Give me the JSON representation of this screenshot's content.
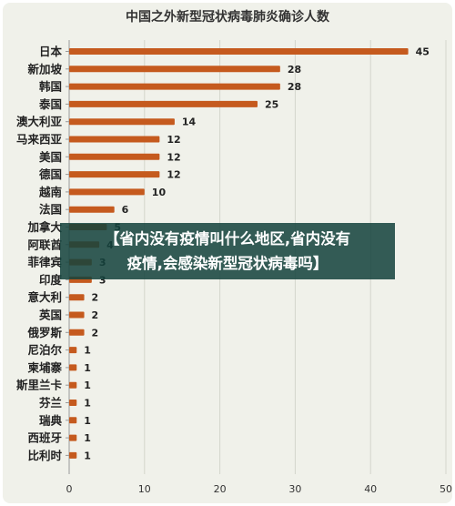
{
  "chart_data": {
    "type": "bar",
    "orientation": "horizontal",
    "title": "中国之外新型冠状病毒肺炎确诊人数",
    "categories": [
      "日本",
      "新加坡",
      "韩国",
      "泰国",
      "澳大利亚",
      "马来西亚",
      "美国",
      "德国",
      "越南",
      "法国",
      "加拿大",
      "阿联酋",
      "菲律宾",
      "印度",
      "意大利",
      "英国",
      "俄罗斯",
      "尼泊尔",
      "柬埔寨",
      "斯里兰卡",
      "芬兰",
      "瑞典",
      "西班牙",
      "比利时"
    ],
    "values": [
      45,
      28,
      28,
      25,
      14,
      12,
      12,
      12,
      10,
      6,
      5,
      4,
      3,
      3,
      2,
      2,
      2,
      1,
      1,
      1,
      1,
      1,
      1,
      1
    ],
    "xlim": [
      0,
      50
    ],
    "xticks": [
      "0",
      "10",
      "20",
      "30",
      "40",
      "50"
    ],
    "grid": true,
    "bar_color": "#c55a1e"
  },
  "overlay": {
    "line1": "【省内没有疫情叫什么地区,省内没有",
    "line2": "疫情,会感染新型冠状病毒吗】"
  }
}
